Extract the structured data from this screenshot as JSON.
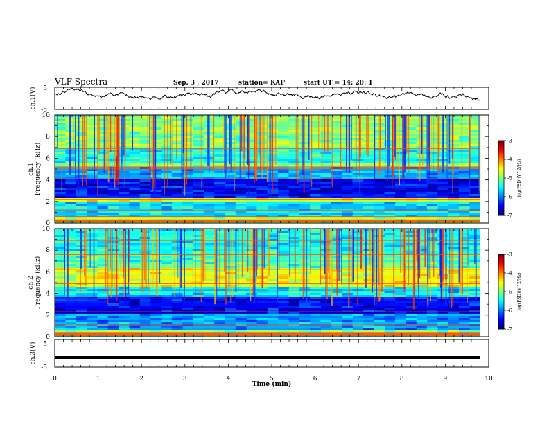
{
  "header": {
    "title": "VLF Spectra",
    "date": "Sep. 3 , 2017",
    "station": "station= KAP",
    "start": "start UT = 14: 20: 1"
  },
  "chart_data": [
    {
      "type": "line",
      "panel": "ch1-waveform",
      "ylabel": "ch.1(V)",
      "ylim": [
        -5,
        5
      ],
      "yticks": [
        "5",
        "-5"
      ],
      "x_range_min": [
        0,
        9.8
      ],
      "description_values": "noisy trace roughly between -3 and 3 V",
      "color": "#000000"
    },
    {
      "type": "heatmap",
      "panel": "ch1-spectrogram",
      "ylabel_line1": "ch.1",
      "ylabel_line2": "Frequency (kHz)",
      "ylim": [
        0,
        10
      ],
      "yticks": [
        "0",
        "2",
        "4",
        "6",
        "8",
        "10"
      ],
      "x_range_min": [
        0,
        9.8
      ],
      "colorbar": {
        "label": "log(PSD)(V^2/Hz)",
        "range": [
          -7,
          -3
        ],
        "ticks": [
          "-3",
          "-4",
          "-5",
          "-6",
          "-7"
        ]
      }
    },
    {
      "type": "heatmap",
      "panel": "ch2-spectrogram",
      "ylabel_line1": "ch.2",
      "ylabel_line2": "Frequency (kHz)",
      "ylim": [
        0,
        10
      ],
      "yticks": [
        "0",
        "2",
        "4",
        "6",
        "8",
        "10"
      ],
      "x_range_min": [
        0,
        9.8
      ],
      "colorbar": {
        "label": "log(PSD)(V^2/Hz)",
        "range": [
          -7,
          -3
        ],
        "ticks": [
          "-3",
          "-4",
          "-5",
          "-6",
          "-7"
        ]
      }
    },
    {
      "type": "line",
      "panel": "ch3-waveform",
      "ylabel": "ch.3(V)",
      "ylim": [
        -5,
        5
      ],
      "yticks": [
        "5",
        "-5"
      ],
      "constant_value": -1.5,
      "x_range_min": [
        0,
        9.8
      ],
      "color": "#000000"
    }
  ],
  "x_axis": {
    "label": "Time (min)",
    "ticks": [
      "0",
      "1",
      "2",
      "3",
      "4",
      "5",
      "6",
      "7",
      "8",
      "9",
      "10"
    ],
    "range": [
      0,
      10
    ]
  }
}
